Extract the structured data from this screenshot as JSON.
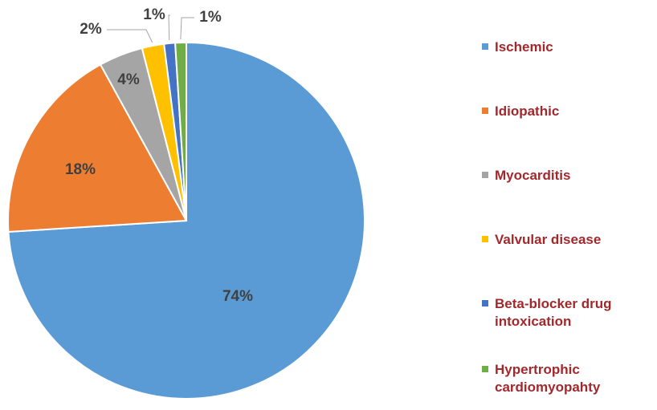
{
  "chart_data": {
    "type": "pie",
    "categories": [
      "Ischemic",
      "Idiopathic",
      "Myocarditis",
      "Valvular disease",
      "Beta-blocker drug intoxication",
      "Hypertrophic cardiomyopahty"
    ],
    "values": [
      74,
      18,
      4,
      2,
      1,
      1
    ],
    "value_labels": [
      "74%",
      "18%",
      "4%",
      "2%",
      "1%",
      "1%"
    ],
    "colors": [
      "#5b9bd5",
      "#ed7d31",
      "#a5a5a5",
      "#ffc000",
      "#4472c4",
      "#70ad47"
    ],
    "legend": "right"
  }
}
